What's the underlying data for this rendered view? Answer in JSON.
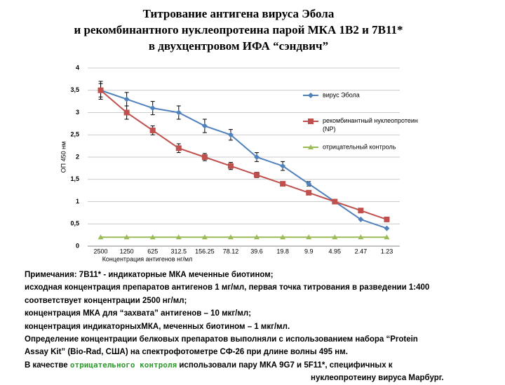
{
  "title": [
    "Титрование антигена вируса Эбола",
    "и рекомбинантного нуклеопротеина парой МКА 1B2 и 7B11*",
    "в двухцентровом ИФА “сэндвич”"
  ],
  "chart_data": {
    "type": "line",
    "y_label": "ОП 450 нм",
    "x_label": "Концентрация антигенов нг/мл",
    "categories": [
      "2500",
      "1250",
      "625",
      "312.5",
      "156.25",
      "78.12",
      "39.6",
      "19.8",
      "9.9",
      "4.95",
      "2.47",
      "1.23"
    ],
    "series": [
      {
        "name": "вирус Эбола",
        "color": "#4f81bd",
        "marker": "diamond",
        "values": [
          3.5,
          3.3,
          3.1,
          3.0,
          2.7,
          2.5,
          2.0,
          1.8,
          1.4,
          1.0,
          0.6,
          0.4
        ],
        "errors": [
          0.2,
          0.15,
          0.15,
          0.15,
          0.15,
          0.12,
          0.1,
          0.1,
          0.05,
          0,
          0,
          0
        ]
      },
      {
        "name": "рекомбинантный нуклеопротеин (NP)",
        "color": "#c0504d",
        "marker": "square",
        "values": [
          3.5,
          3.0,
          2.6,
          2.2,
          2.0,
          1.8,
          1.6,
          1.4,
          1.2,
          1.0,
          0.8,
          0.6
        ],
        "errors": [
          0.15,
          0.15,
          0.1,
          0.1,
          0.08,
          0.08,
          0.06,
          0.05,
          0,
          0,
          0,
          0
        ]
      },
      {
        "name": "отрицательный контроль",
        "color": "#9bbb59",
        "marker": "triangle",
        "values": [
          0.2,
          0.2,
          0.2,
          0.2,
          0.2,
          0.2,
          0.2,
          0.2,
          0.2,
          0.2,
          0.2,
          0.2
        ]
      }
    ],
    "ylim": [
      0,
      4
    ],
    "yticks": [
      0,
      {
        "value": 0.5,
        "label": "0,5"
      },
      1,
      {
        "value": 1.5,
        "label": "1,5"
      },
      2,
      {
        "value": 2.5,
        "label": "2,5"
      },
      3,
      {
        "value": 3.5,
        "label": "3,5"
      },
      4
    ],
    "grid": true,
    "legend": "right"
  },
  "notes": {
    "lines": [
      "Примечания: 7B11* - индикаторные МКА меченные биотином;",
      "исходная концентрация препаратов антигенов 1 мг/мл, первая точка титрования в разведении 1:400",
      "соответствует концентрации 2500 нг/мл;",
      "концентрация МКА для “захвата” антигенов – 10 мкг/мл;",
      "концентрация индикаторныхМКА, меченных биотином – 1 мкг/мл.",
      "Определение концентрации белковых препаратов выполняли с использованием набора “Protein",
      "Assay Kit” (Bio-Rad, США) на спектрофотометре СФ-26  при длине волны 495 нм."
    ],
    "last": {
      "before": "В качестве ",
      "highlight": "отрицательного контроля",
      "after": " использовали пару МКА 9G7 и 5F11*, специфичных к",
      "end": "нуклеопротеину вируса Марбург."
    }
  }
}
